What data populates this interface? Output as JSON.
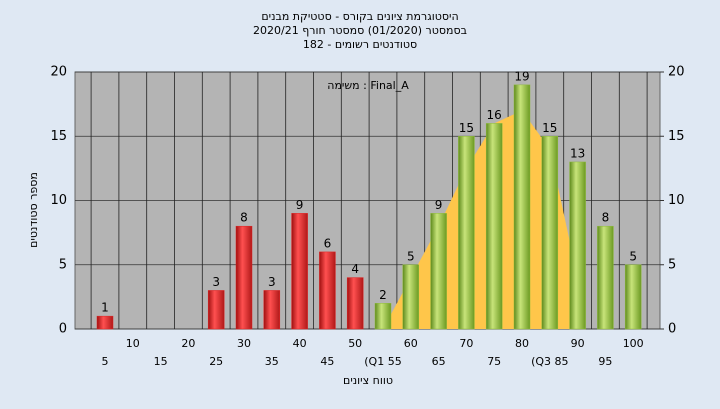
{
  "chart_data": {
    "type": "bar",
    "title": "היסטוגרמת ציונים בקורס - סטטיקת מבנים",
    "subtitle": [
      "בסמסטר  (01/2020)  סמסטר חורף 2020/21",
      "סטודנטים רשומים - 182"
    ],
    "annotation": "משימה : Final_A",
    "x_label": "טווח ציונים",
    "y_label": "מספר סטודנטים",
    "categories": [
      "5",
      "10",
      "15",
      "20",
      "25",
      "30",
      "35",
      "40",
      "45",
      "50",
      "(Q1 55",
      "60",
      "65",
      "70",
      "75",
      "80",
      "(Q3 85",
      "90",
      "95",
      "100"
    ],
    "series": [
      {
        "color": "#e02424",
        "values": [
          1,
          0,
          0,
          0,
          3,
          8,
          3,
          9,
          6,
          4,
          null,
          null,
          null,
          null,
          null,
          null,
          null,
          null,
          null,
          null
        ]
      },
      {
        "color": "#8fbb3c",
        "values": [
          null,
          null,
          null,
          null,
          null,
          null,
          null,
          null,
          null,
          null,
          2,
          5,
          9,
          15,
          16,
          19,
          15,
          13,
          8,
          5
        ]
      }
    ],
    "area": {
      "color": "#ffc64a",
      "values": [
        null,
        null,
        null,
        null,
        null,
        null,
        null,
        null,
        null,
        null,
        0,
        4,
        8,
        12.5,
        16,
        17,
        14,
        4,
        null,
        null
      ]
    },
    "ylim": [
      0,
      20
    ],
    "yticks": [
      0,
      5,
      10,
      15,
      20
    ],
    "y2lim": [
      0,
      20
    ],
    "y2ticks": [
      0,
      5,
      10,
      15,
      20
    ],
    "grid": true
  }
}
